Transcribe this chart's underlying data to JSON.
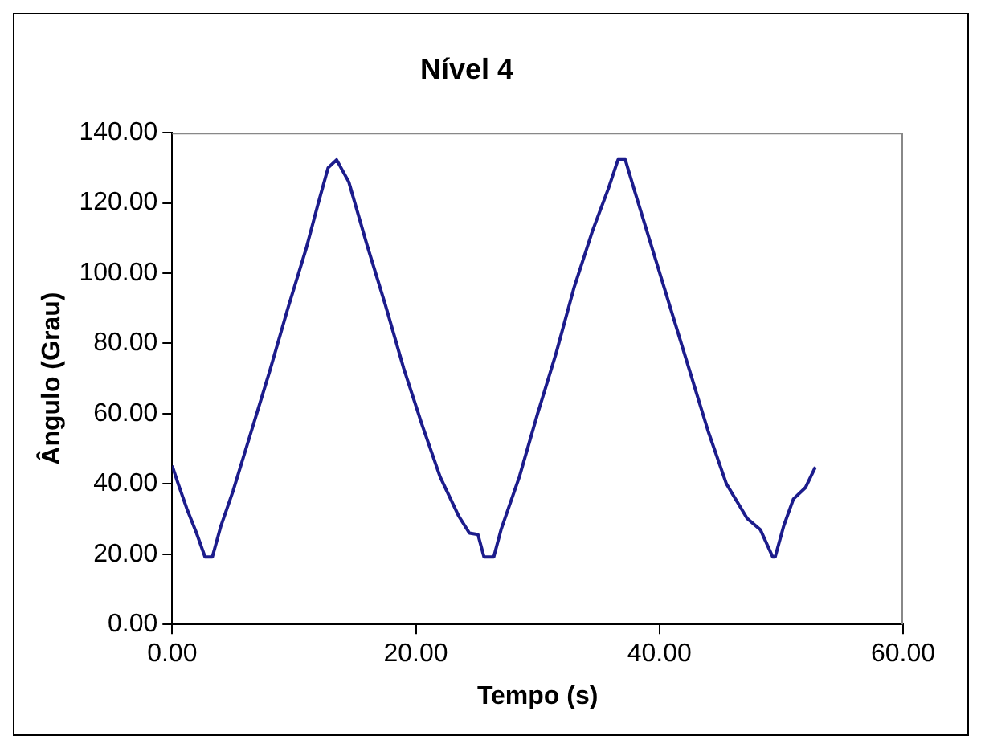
{
  "chart_data": {
    "type": "line",
    "title": "Nível 4",
    "xlabel": "Tempo (s)",
    "ylabel": "Ângulo (Grau)",
    "series": [
      {
        "color": "#1c1c8c",
        "x": [
          0,
          0.5,
          1.2,
          2.0,
          2.7,
          3.3,
          4.0,
          5.0,
          6.5,
          8.0,
          9.5,
          11.0,
          12.0,
          12.8,
          13.5,
          14.5,
          16.0,
          17.5,
          19.0,
          20.5,
          22.0,
          23.5,
          24.4,
          25.1,
          25.6,
          26.4,
          27.0,
          28.5,
          30.0,
          31.5,
          33.0,
          34.5,
          35.8,
          36.6,
          37.2,
          38.0,
          39.5,
          41.0,
          42.5,
          44.0,
          45.5,
          47.2,
          48.3,
          49.3,
          49.5,
          50.2,
          51.0,
          52.0,
          52.8
        ],
        "values": [
          45.2,
          40,
          33,
          26,
          19.2,
          19.2,
          28,
          38,
          55,
          72,
          90,
          107,
          120,
          130,
          132.3,
          126,
          108,
          91,
          73,
          57,
          42,
          31,
          26,
          25.6,
          19.2,
          19.2,
          27,
          42,
          60,
          77,
          96,
          112,
          124,
          132.3,
          132.3,
          123,
          106,
          89,
          72,
          55,
          40,
          30.2,
          26.9,
          19.2,
          19.2,
          28,
          35.7,
          39,
          44.8
        ]
      }
    ],
    "xlim": [
      0,
      60
    ],
    "xticks": [
      {
        "value": 0,
        "label": "0.00"
      },
      {
        "value": 20,
        "label": "20.00"
      },
      {
        "value": 40,
        "label": "40.00"
      },
      {
        "value": 60,
        "label": "60.00"
      }
    ],
    "ylim": [
      0,
      140
    ],
    "yticks": [
      {
        "value": 0,
        "label": "0.00"
      },
      {
        "value": 20,
        "label": "20.00"
      },
      {
        "value": 40,
        "label": "40.00"
      },
      {
        "value": 60,
        "label": "60.00"
      },
      {
        "value": 80,
        "label": "80.00"
      },
      {
        "value": 100,
        "label": "100.00"
      },
      {
        "value": 120,
        "label": "120.00"
      },
      {
        "value": 140,
        "label": "140.00"
      }
    ],
    "grid": false,
    "legend": false,
    "marker": "none",
    "line_style": "solid"
  }
}
